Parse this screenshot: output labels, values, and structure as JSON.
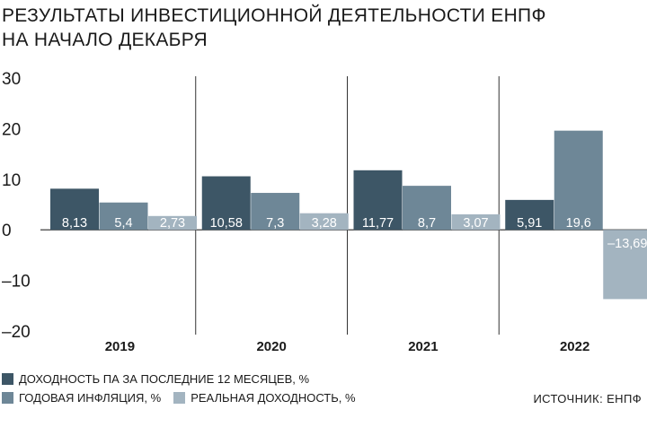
{
  "title_lines": [
    "РЕЗУЛЬТАТЫ ИНВЕСТИЦИОННОЙ ДЕЯТЕЛЬНОСТИ ЕНПФ",
    "НА НАЧАЛО ДЕКАБРЯ"
  ],
  "source": "ИСТОЧНИК: ЕНПФ",
  "chart_data": {
    "type": "bar",
    "title": "РЕЗУЛЬТАТЫ ИНВЕСТИЦИОННОЙ ДЕЯТЕЛЬНОСТИ ЕНПФ НА НАЧАЛО ДЕКАБРЯ",
    "categories": [
      "2019",
      "2020",
      "2021",
      "2022"
    ],
    "series": [
      {
        "name": "ДОХОДНОСТЬ ПА ЗА ПОСЛЕДНИЕ 12 МЕСЯЦЕВ, %",
        "values": [
          8.13,
          10.58,
          11.77,
          5.91
        ],
        "labels": [
          "8,13",
          "10,58",
          "11,77",
          "5,91"
        ],
        "color": "#3d5666"
      },
      {
        "name": "ГОДОВАЯ ИНФЛЯЦИЯ, %",
        "values": [
          5.4,
          7.3,
          8.7,
          19.6
        ],
        "labels": [
          "5,4",
          "7,3",
          "8,7",
          "19,6"
        ],
        "color": "#6e8797"
      },
      {
        "name": "РЕАЛЬНАЯ ДОХОДНОСТЬ, %",
        "values": [
          2.73,
          3.28,
          3.07,
          -13.69
        ],
        "labels": [
          "2,73",
          "3,28",
          "3,07",
          "–13,69"
        ],
        "color": "#a3b4c0"
      }
    ],
    "yticks": [
      30,
      20,
      10,
      0,
      -10,
      -20
    ],
    "ytick_labels": [
      "30",
      "20",
      "10",
      "0",
      "–10",
      "–20"
    ],
    "ylim": [
      -20,
      30
    ],
    "grid": "vertical separators between years",
    "legend_position": "bottom-left"
  }
}
